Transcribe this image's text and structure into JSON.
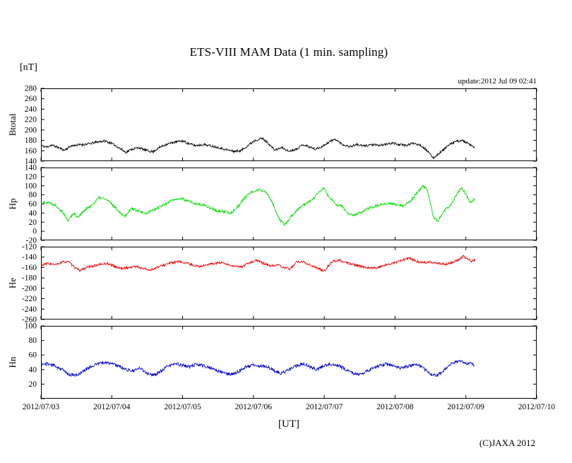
{
  "header": {
    "title": "ETS-VIII MAM Data (1 min. sampling)",
    "unit_label": "[nT]",
    "update_text": "update:2012 Jul 09 02:41"
  },
  "footer": {
    "copyright": "(C)JAXA 2012"
  },
  "x_axis": {
    "label": "[UT]",
    "min": 3,
    "max": 10,
    "unit": "day of 2012/07",
    "tick_labels": [
      "2012/07/03",
      "2012/07/04",
      "2012/07/05",
      "2012/07/06",
      "2012/07/07",
      "2012/07/08",
      "2012/07/09",
      "2012/07/10"
    ]
  },
  "chart_data": [
    {
      "type": "line",
      "label": "Btotal",
      "color": "#000000",
      "ylim": [
        140,
        280
      ],
      "ytick_step": 20,
      "omit_min_label": false,
      "noise": 2.2,
      "seed": 11,
      "points": [
        [
          3.0,
          170
        ],
        [
          3.08,
          167
        ],
        [
          3.15,
          171
        ],
        [
          3.25,
          166
        ],
        [
          3.33,
          161
        ],
        [
          3.42,
          169
        ],
        [
          3.5,
          171
        ],
        [
          3.6,
          172
        ],
        [
          3.7,
          174
        ],
        [
          3.8,
          177
        ],
        [
          3.9,
          179
        ],
        [
          4.0,
          174
        ],
        [
          4.1,
          166
        ],
        [
          4.2,
          157
        ],
        [
          4.28,
          163
        ],
        [
          4.38,
          166
        ],
        [
          4.48,
          161
        ],
        [
          4.58,
          158
        ],
        [
          4.68,
          167
        ],
        [
          4.78,
          173
        ],
        [
          4.9,
          177
        ],
        [
          5.0,
          179
        ],
        [
          5.08,
          174
        ],
        [
          5.18,
          170
        ],
        [
          5.3,
          172
        ],
        [
          5.42,
          169
        ],
        [
          5.52,
          166
        ],
        [
          5.62,
          162
        ],
        [
          5.72,
          159
        ],
        [
          5.82,
          160
        ],
        [
          5.92,
          170
        ],
        [
          6.02,
          180
        ],
        [
          6.12,
          184
        ],
        [
          6.2,
          176
        ],
        [
          6.3,
          161
        ],
        [
          6.4,
          166
        ],
        [
          6.5,
          159
        ],
        [
          6.6,
          163
        ],
        [
          6.7,
          172
        ],
        [
          6.78,
          168
        ],
        [
          6.88,
          163
        ],
        [
          6.98,
          169
        ],
        [
          7.08,
          178
        ],
        [
          7.16,
          182
        ],
        [
          7.26,
          172
        ],
        [
          7.36,
          168
        ],
        [
          7.46,
          172
        ],
        [
          7.56,
          169
        ],
        [
          7.66,
          172
        ],
        [
          7.76,
          170
        ],
        [
          7.86,
          172
        ],
        [
          7.96,
          175
        ],
        [
          8.06,
          172
        ],
        [
          8.16,
          170
        ],
        [
          8.26,
          175
        ],
        [
          8.36,
          171
        ],
        [
          8.44,
          162
        ],
        [
          8.54,
          146
        ],
        [
          8.64,
          157
        ],
        [
          8.74,
          169
        ],
        [
          8.84,
          177
        ],
        [
          8.94,
          180
        ],
        [
          9.0,
          176
        ],
        [
          9.06,
          171
        ],
        [
          9.12,
          166
        ]
      ]
    },
    {
      "type": "line",
      "label": "Hp",
      "color": "#00dd00",
      "ylim": [
        -20,
        140
      ],
      "ytick_step": 20,
      "omit_min_label": false,
      "noise": 3.0,
      "seed": 22,
      "points": [
        [
          3.0,
          62
        ],
        [
          3.1,
          64
        ],
        [
          3.2,
          58
        ],
        [
          3.3,
          44
        ],
        [
          3.38,
          23
        ],
        [
          3.46,
          40
        ],
        [
          3.52,
          31
        ],
        [
          3.62,
          46
        ],
        [
          3.72,
          58
        ],
        [
          3.82,
          74
        ],
        [
          3.9,
          72
        ],
        [
          4.0,
          60
        ],
        [
          4.1,
          44
        ],
        [
          4.18,
          33
        ],
        [
          4.28,
          50
        ],
        [
          4.38,
          44
        ],
        [
          4.48,
          38
        ],
        [
          4.58,
          47
        ],
        [
          4.68,
          54
        ],
        [
          4.78,
          62
        ],
        [
          4.88,
          70
        ],
        [
          4.98,
          72
        ],
        [
          5.08,
          66
        ],
        [
          5.18,
          60
        ],
        [
          5.28,
          58
        ],
        [
          5.38,
          52
        ],
        [
          5.48,
          45
        ],
        [
          5.58,
          42
        ],
        [
          5.68,
          40
        ],
        [
          5.78,
          54
        ],
        [
          5.88,
          74
        ],
        [
          5.98,
          87
        ],
        [
          6.08,
          92
        ],
        [
          6.18,
          86
        ],
        [
          6.28,
          58
        ],
        [
          6.36,
          28
        ],
        [
          6.44,
          13
        ],
        [
          6.54,
          34
        ],
        [
          6.64,
          50
        ],
        [
          6.74,
          61
        ],
        [
          6.84,
          70
        ],
        [
          6.94,
          88
        ],
        [
          7.0,
          96
        ],
        [
          7.06,
          76
        ],
        [
          7.16,
          60
        ],
        [
          7.26,
          54
        ],
        [
          7.32,
          40
        ],
        [
          7.42,
          34
        ],
        [
          7.52,
          42
        ],
        [
          7.62,
          50
        ],
        [
          7.72,
          55
        ],
        [
          7.82,
          60
        ],
        [
          7.92,
          62
        ],
        [
          8.02,
          58
        ],
        [
          8.12,
          55
        ],
        [
          8.22,
          66
        ],
        [
          8.32,
          86
        ],
        [
          8.4,
          100
        ],
        [
          8.46,
          88
        ],
        [
          8.54,
          32
        ],
        [
          8.6,
          21
        ],
        [
          8.7,
          46
        ],
        [
          8.8,
          60
        ],
        [
          8.88,
          84
        ],
        [
          8.94,
          96
        ],
        [
          9.0,
          82
        ],
        [
          9.06,
          64
        ],
        [
          9.12,
          70
        ]
      ]
    },
    {
      "type": "line",
      "label": "He",
      "color": "#ee0000",
      "ylim": [
        -260,
        -120
      ],
      "ytick_step": 20,
      "omit_min_label": false,
      "noise": 2.2,
      "seed": 33,
      "points": [
        [
          3.0,
          -156
        ],
        [
          3.1,
          -152
        ],
        [
          3.2,
          -155
        ],
        [
          3.3,
          -150
        ],
        [
          3.38,
          -148
        ],
        [
          3.46,
          -158
        ],
        [
          3.54,
          -166
        ],
        [
          3.64,
          -160
        ],
        [
          3.74,
          -157
        ],
        [
          3.84,
          -154
        ],
        [
          3.94,
          -152
        ],
        [
          4.04,
          -158
        ],
        [
          4.14,
          -162
        ],
        [
          4.24,
          -160
        ],
        [
          4.34,
          -158
        ],
        [
          4.44,
          -162
        ],
        [
          4.54,
          -165
        ],
        [
          4.64,
          -160
        ],
        [
          4.74,
          -155
        ],
        [
          4.84,
          -151
        ],
        [
          4.94,
          -149
        ],
        [
          5.04,
          -151
        ],
        [
          5.14,
          -155
        ],
        [
          5.24,
          -158
        ],
        [
          5.34,
          -155
        ],
        [
          5.44,
          -152
        ],
        [
          5.54,
          -151
        ],
        [
          5.64,
          -155
        ],
        [
          5.74,
          -158
        ],
        [
          5.84,
          -159
        ],
        [
          5.94,
          -151
        ],
        [
          6.04,
          -146
        ],
        [
          6.14,
          -152
        ],
        [
          6.24,
          -157
        ],
        [
          6.34,
          -155
        ],
        [
          6.44,
          -161
        ],
        [
          6.52,
          -163
        ],
        [
          6.6,
          -150
        ],
        [
          6.7,
          -149
        ],
        [
          6.8,
          -155
        ],
        [
          6.9,
          -161
        ],
        [
          7.0,
          -167
        ],
        [
          7.06,
          -156
        ],
        [
          7.12,
          -148
        ],
        [
          7.22,
          -146
        ],
        [
          7.32,
          -151
        ],
        [
          7.42,
          -155
        ],
        [
          7.52,
          -158
        ],
        [
          7.62,
          -160
        ],
        [
          7.72,
          -161
        ],
        [
          7.8,
          -158
        ],
        [
          7.9,
          -154
        ],
        [
          8.0,
          -151
        ],
        [
          8.1,
          -146
        ],
        [
          8.2,
          -142
        ],
        [
          8.3,
          -148
        ],
        [
          8.4,
          -151
        ],
        [
          8.5,
          -149
        ],
        [
          8.6,
          -152
        ],
        [
          8.7,
          -154
        ],
        [
          8.8,
          -151
        ],
        [
          8.9,
          -145
        ],
        [
          8.96,
          -138
        ],
        [
          9.02,
          -143
        ],
        [
          9.08,
          -148
        ],
        [
          9.13,
          -145
        ]
      ]
    },
    {
      "type": "line",
      "label": "Hn",
      "color": "#0000cc",
      "ylim": [
        0,
        100
      ],
      "ytick_step": 20,
      "omit_min_label": true,
      "noise": 2.2,
      "seed": 44,
      "points": [
        [
          3.0,
          47
        ],
        [
          3.1,
          48
        ],
        [
          3.2,
          45
        ],
        [
          3.3,
          40
        ],
        [
          3.4,
          33
        ],
        [
          3.5,
          32
        ],
        [
          3.6,
          38
        ],
        [
          3.7,
          44
        ],
        [
          3.8,
          48
        ],
        [
          3.9,
          50
        ],
        [
          4.0,
          48
        ],
        [
          4.1,
          45
        ],
        [
          4.2,
          40
        ],
        [
          4.3,
          38
        ],
        [
          4.4,
          42
        ],
        [
          4.5,
          35
        ],
        [
          4.6,
          32
        ],
        [
          4.7,
          38
        ],
        [
          4.8,
          45
        ],
        [
          4.9,
          48
        ],
        [
          5.0,
          46
        ],
        [
          5.1,
          44
        ],
        [
          5.2,
          47
        ],
        [
          5.3,
          45
        ],
        [
          5.4,
          42
        ],
        [
          5.5,
          38
        ],
        [
          5.6,
          35
        ],
        [
          5.7,
          33
        ],
        [
          5.8,
          38
        ],
        [
          5.9,
          44
        ],
        [
          6.0,
          46
        ],
        [
          6.1,
          45
        ],
        [
          6.2,
          44
        ],
        [
          6.3,
          38
        ],
        [
          6.4,
          35
        ],
        [
          6.5,
          40
        ],
        [
          6.6,
          45
        ],
        [
          6.7,
          48
        ],
        [
          6.8,
          44
        ],
        [
          6.9,
          40
        ],
        [
          7.0,
          45
        ],
        [
          7.1,
          48
        ],
        [
          7.2,
          46
        ],
        [
          7.3,
          40
        ],
        [
          7.4,
          35
        ],
        [
          7.5,
          33
        ],
        [
          7.6,
          38
        ],
        [
          7.7,
          42
        ],
        [
          7.8,
          46
        ],
        [
          7.9,
          48
        ],
        [
          8.0,
          45
        ],
        [
          8.1,
          42
        ],
        [
          8.2,
          45
        ],
        [
          8.3,
          48
        ],
        [
          8.4,
          42
        ],
        [
          8.5,
          33
        ],
        [
          8.6,
          32
        ],
        [
          8.7,
          40
        ],
        [
          8.8,
          48
        ],
        [
          8.9,
          52
        ],
        [
          9.0,
          48
        ],
        [
          9.06,
          50
        ],
        [
          9.12,
          45
        ]
      ]
    }
  ]
}
